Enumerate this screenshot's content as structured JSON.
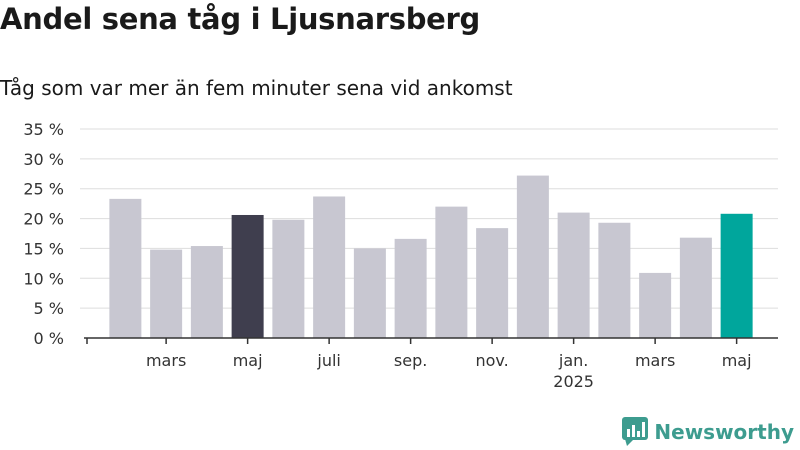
{
  "header": {
    "title": "Andel sena tåg i Ljusnarsberg",
    "subtitle": "Tåg som var mer än fem minuter sena vid ankomst"
  },
  "brand": {
    "name": "Newsworthy",
    "icon": "newsworthy-logo-icon",
    "color": "#3d9c8f"
  },
  "colors": {
    "default": "#c8c7d1",
    "highlight_dark": "#3f3e4e",
    "highlight_accent": "#00a69c",
    "grid": "#dddddd",
    "axis": "#333333"
  },
  "chart_data": {
    "type": "bar",
    "title": "Andel sena tåg i Ljusnarsberg",
    "subtitle": "Tåg som var mer än fem minuter sena vid ankomst",
    "xlabel": "",
    "ylabel": "",
    "ylim": [
      0,
      35
    ],
    "yticks": [
      "0 %",
      "5 %",
      "10 %",
      "15 %",
      "20 %",
      "25 %",
      "30 %",
      "35 %"
    ],
    "ytick_values": [
      0,
      5,
      10,
      15,
      20,
      25,
      30,
      35
    ],
    "grid": true,
    "values": [
      23.3,
      14.8,
      15.4,
      20.6,
      19.8,
      23.7,
      15.0,
      16.6,
      22.0,
      18.4,
      27.2,
      21.0,
      19.3,
      10.9,
      16.8,
      20.8
    ],
    "highlights": {
      "3": "dark",
      "15": "accent"
    },
    "x_tick_labels": [
      {
        "label": "mars",
        "sub": "",
        "bar_index": 1
      },
      {
        "label": "maj",
        "sub": "",
        "bar_index": 3
      },
      {
        "label": "juli",
        "sub": "",
        "bar_index": 5
      },
      {
        "label": "sep.",
        "sub": "",
        "bar_index": 7
      },
      {
        "label": "nov.",
        "sub": "",
        "bar_index": 9
      },
      {
        "label": "jan.",
        "sub": "2025",
        "bar_index": 11
      },
      {
        "label": "mars",
        "sub": "",
        "bar_index": 13
      },
      {
        "label": "maj",
        "sub": "",
        "bar_index": 15
      }
    ]
  }
}
